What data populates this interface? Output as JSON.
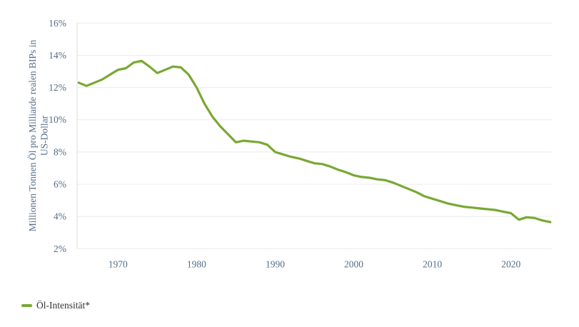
{
  "chart_data": {
    "type": "line",
    "title": "",
    "xlabel": "",
    "ylabel": "Millionen Tonnen Öl pro Milliarde realen BIPs in US-Dollar",
    "ylabel_line1": "Millionen Tonnen Öl pro Milliarde realen BIPs in",
    "ylabel_line2": "US-Dollar",
    "legend_position": "bottom-left",
    "grid": "horizontal",
    "xlim": [
      1964.8,
      2025.2
    ],
    "ylim": [
      2,
      16
    ],
    "y_ticks": [
      {
        "value": 2,
        "label": "2%"
      },
      {
        "value": 4,
        "label": "4%"
      },
      {
        "value": 6,
        "label": "6%"
      },
      {
        "value": 8,
        "label": "8%"
      },
      {
        "value": 10,
        "label": "10%"
      },
      {
        "value": 12,
        "label": "12%"
      },
      {
        "value": 14,
        "label": "14%"
      },
      {
        "value": 16,
        "label": "16%"
      }
    ],
    "x_ticks": [
      {
        "value": 1970,
        "label": "1970"
      },
      {
        "value": 1980,
        "label": "1980"
      },
      {
        "value": 1990,
        "label": "1990"
      },
      {
        "value": 2000,
        "label": "2000"
      },
      {
        "value": 2010,
        "label": "2010"
      },
      {
        "value": 2020,
        "label": "2020"
      }
    ],
    "x": [
      1965,
      1966,
      1967,
      1968,
      1969,
      1970,
      1971,
      1972,
      1973,
      1974,
      1975,
      1976,
      1977,
      1978,
      1979,
      1980,
      1981,
      1982,
      1983,
      1984,
      1985,
      1986,
      1987,
      1988,
      1989,
      1990,
      1991,
      1992,
      1993,
      1994,
      1995,
      1996,
      1997,
      1998,
      1999,
      2000,
      2001,
      2002,
      2003,
      2004,
      2005,
      2006,
      2007,
      2008,
      2009,
      2010,
      2011,
      2012,
      2013,
      2014,
      2015,
      2016,
      2017,
      2018,
      2019,
      2020,
      2021,
      2022,
      2023,
      2024,
      2025
    ],
    "series": [
      {
        "name": "Öl-Intensität*",
        "values": [
          12.3,
          12.1,
          12.3,
          12.5,
          12.8,
          13.1,
          13.2,
          13.55,
          13.65,
          13.3,
          12.9,
          13.1,
          13.3,
          13.25,
          12.8,
          12.0,
          11.0,
          10.2,
          9.6,
          9.1,
          8.6,
          8.7,
          8.65,
          8.6,
          8.45,
          8.0,
          7.85,
          7.7,
          7.6,
          7.45,
          7.3,
          7.25,
          7.1,
          6.9,
          6.75,
          6.55,
          6.45,
          6.4,
          6.3,
          6.25,
          6.1,
          5.9,
          5.7,
          5.5,
          5.25,
          5.1,
          4.95,
          4.8,
          4.7,
          4.6,
          4.55,
          4.5,
          4.45,
          4.4,
          4.3,
          4.2,
          3.8,
          3.95,
          3.9,
          3.75,
          3.65
        ]
      }
    ],
    "colors": {
      "line": "#79a832",
      "grid": "#ebebeb",
      "axis_line": "#dedede",
      "axis_text": "#526c86",
      "legend_text": "#333333",
      "background": "#ffffff"
    }
  }
}
